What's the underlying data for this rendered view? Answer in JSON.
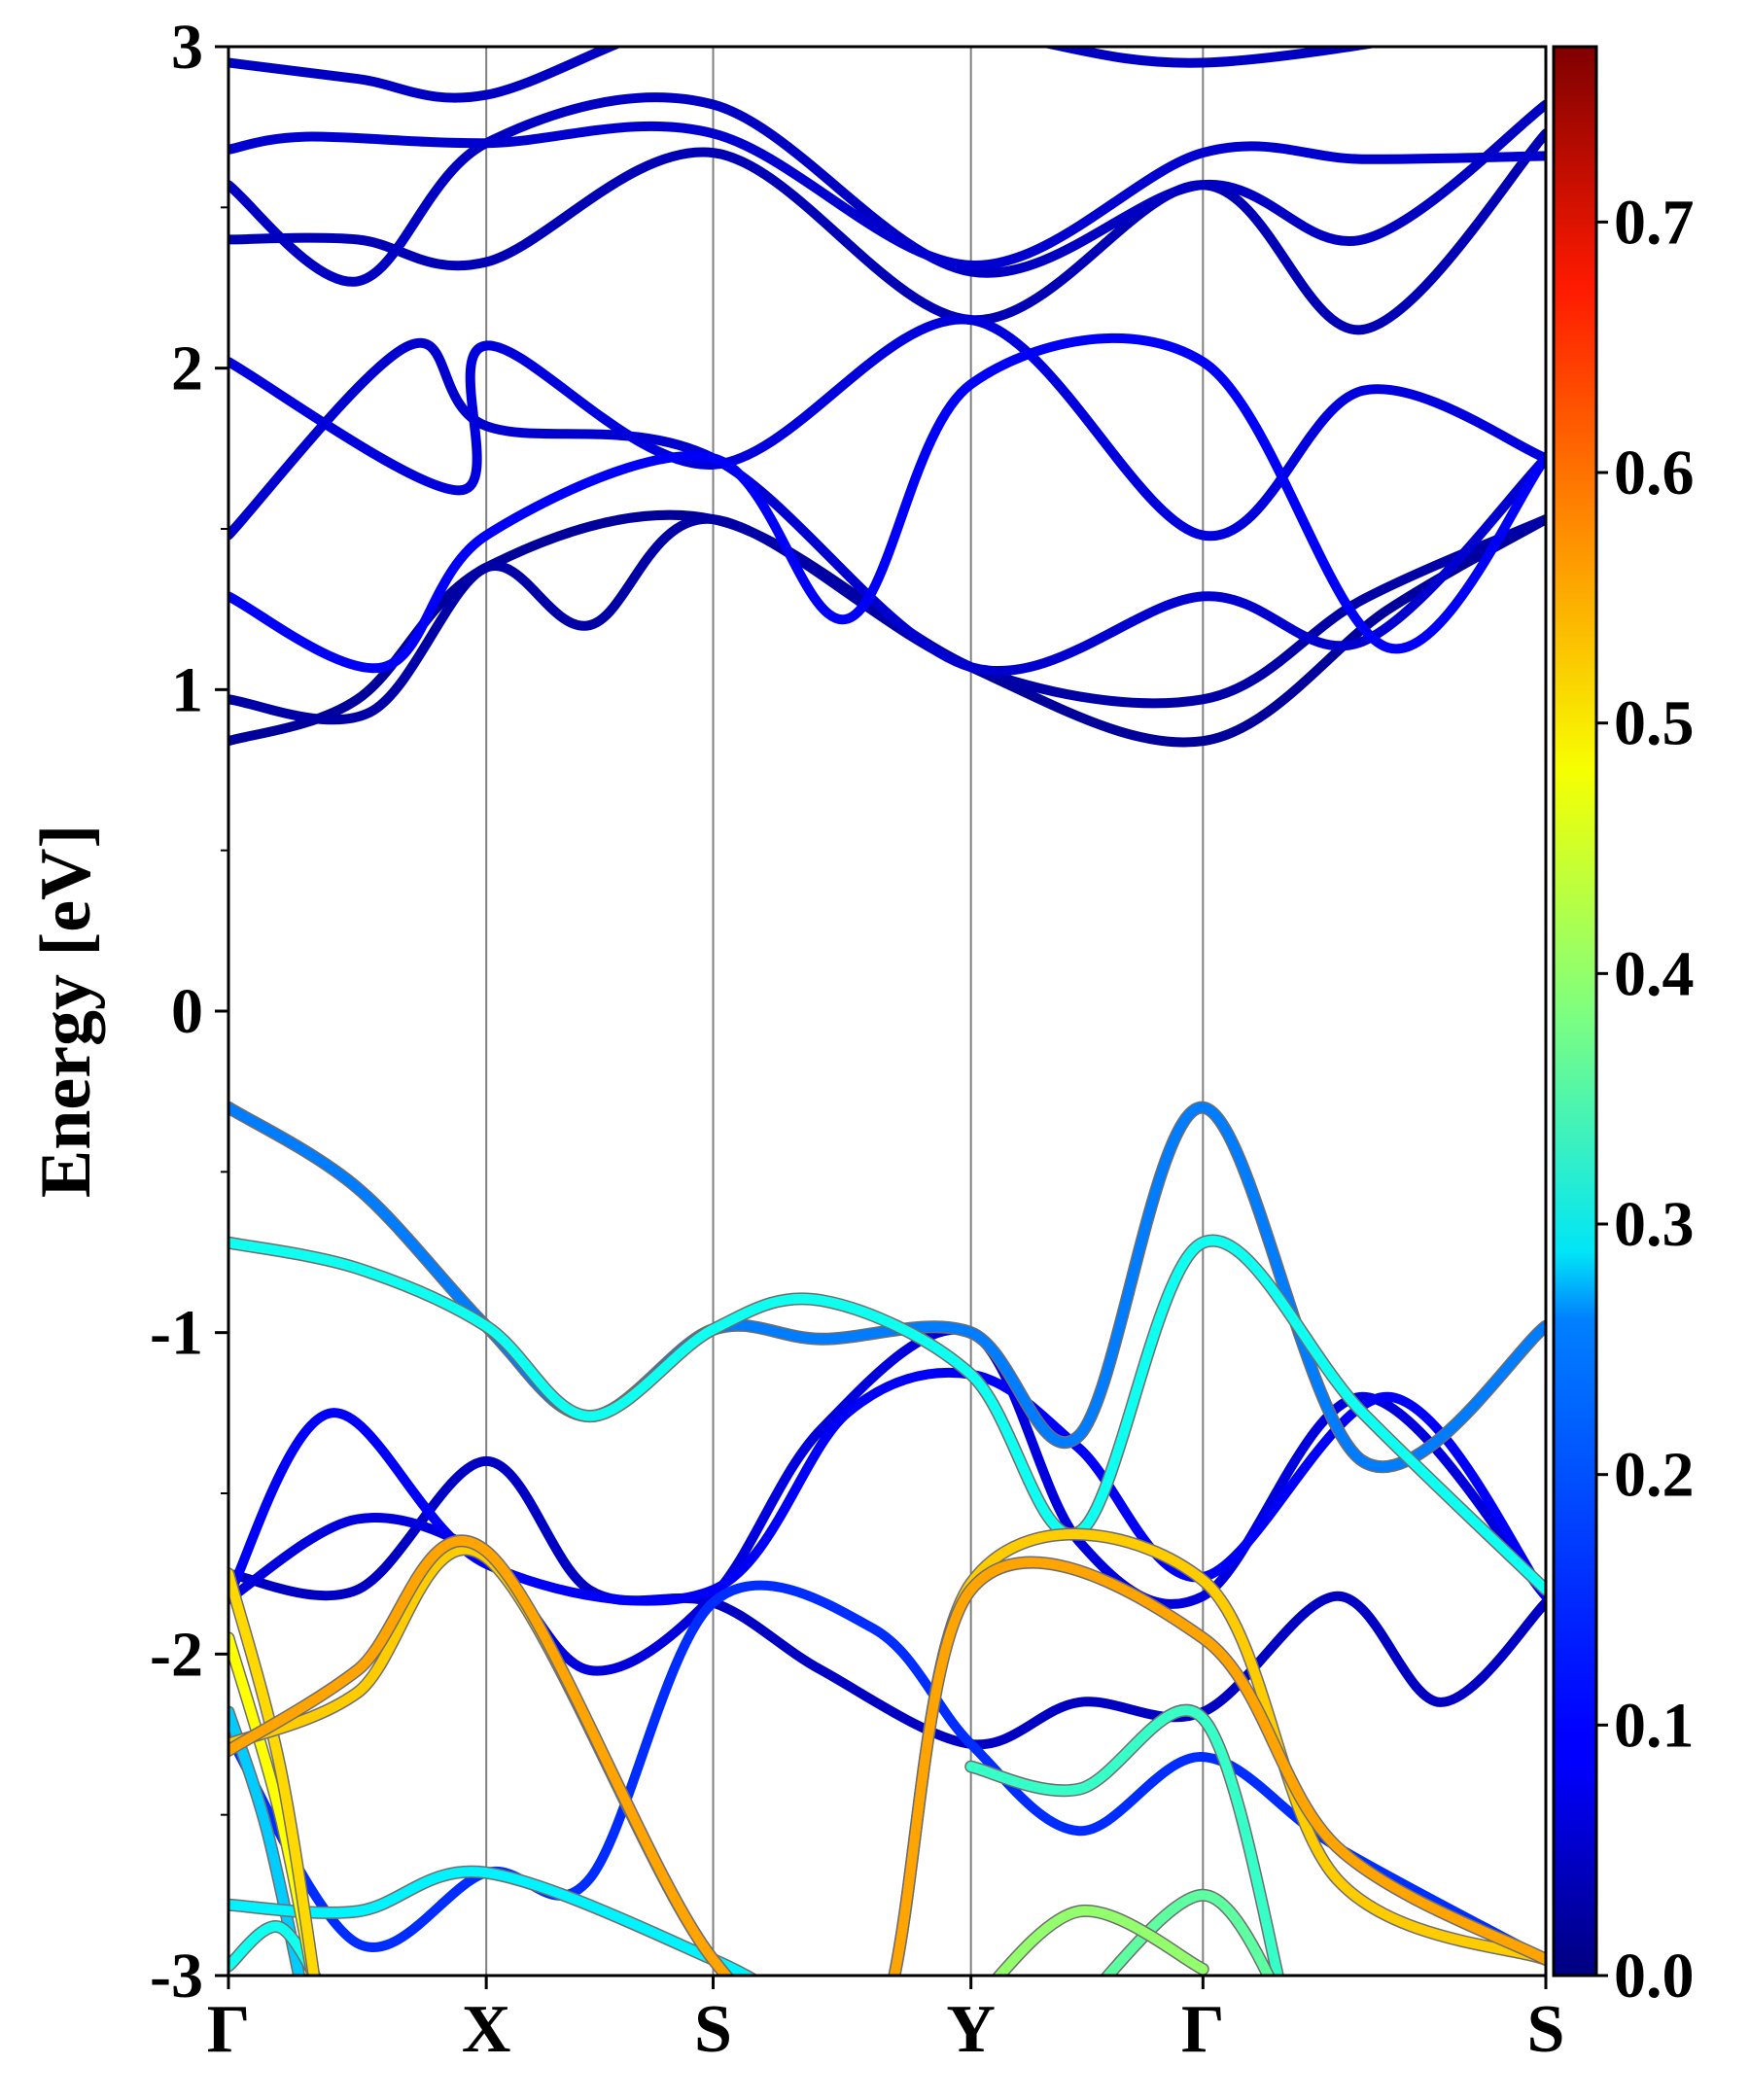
{
  "chart_data": {
    "type": "line",
    "title": "",
    "ylabel": "Energy [eV]",
    "xlabel": "",
    "ylim": [
      -3,
      3
    ],
    "yticks": [
      "-3",
      "-2",
      "-1",
      "0",
      "1",
      "2",
      "3"
    ],
    "kpath": {
      "labels": [
        "Γ",
        "X",
        "S",
        "Y",
        "Γ",
        "S"
      ],
      "positions": [
        0,
        1.0,
        1.88,
        2.88,
        3.78,
        5.11
      ]
    },
    "colorbar": {
      "colormap": "jet",
      "range": [
        0,
        0.77
      ],
      "ticks": [
        "0.0",
        "0.1",
        "0.2",
        "0.3",
        "0.4",
        "0.5",
        "0.6",
        "0.7"
      ]
    },
    "grid": false,
    "series": [
      {
        "k": [
          0,
          0.5,
          1.0,
          1.88,
          2.88,
          3.78,
          4.5,
          5.11
        ],
        "e": [
          0.84,
          0.97,
          1.38,
          1.53,
          1.07,
          0.84,
          1.25,
          1.53
        ],
        "w": 0.02
      },
      {
        "k": [
          0,
          0.55,
          1.0,
          1.4,
          1.88,
          2.88,
          3.78,
          4.4,
          5.11
        ],
        "e": [
          0.97,
          0.93,
          1.38,
          1.2,
          1.53,
          1.07,
          0.97,
          1.28,
          1.53
        ],
        "w": 0.03
      },
      {
        "k": [
          0,
          0.6,
          1.0,
          1.88,
          2.4,
          2.88,
          3.78,
          4.5,
          5.11
        ],
        "e": [
          1.29,
          1.07,
          1.48,
          1.72,
          1.22,
          1.95,
          2.02,
          1.13,
          1.72
        ],
        "w": 0.09
      },
      {
        "k": [
          0,
          0.7,
          1.0,
          1.88,
          2.88,
          3.78,
          4.4,
          5.11
        ],
        "e": [
          1.48,
          2.07,
          1.82,
          1.72,
          1.07,
          1.29,
          1.15,
          1.72
        ],
        "w": 0.06
      },
      {
        "k": [
          0,
          0.9,
          1.0,
          1.88,
          2.88,
          3.78,
          4.4,
          5.11
        ],
        "e": [
          2.02,
          1.62,
          2.07,
          1.7,
          2.15,
          1.48,
          1.93,
          1.72
        ],
        "w": 0.07
      },
      {
        "k": [
          0,
          0.5,
          1.0,
          1.88,
          2.88,
          3.78,
          4.4,
          5.11
        ],
        "e": [
          2.4,
          2.4,
          2.33,
          2.67,
          2.15,
          2.57,
          2.12,
          2.73
        ],
        "w": 0.04
      },
      {
        "k": [
          0,
          0.5,
          1.0,
          1.88,
          2.88,
          3.78,
          4.4,
          5.11
        ],
        "e": [
          2.57,
          2.27,
          2.7,
          2.82,
          2.3,
          2.57,
          2.4,
          2.82
        ],
        "w": 0.05
      },
      {
        "k": [
          0,
          0.3,
          1.0,
          1.88,
          2.88,
          3.78,
          4.4,
          5.11
        ],
        "e": [
          2.68,
          2.72,
          2.7,
          2.73,
          2.32,
          2.67,
          2.65,
          2.66
        ],
        "w": 0.06
      },
      {
        "k": [
          0,
          0.5,
          1.0,
          1.88,
          2.88,
          3.78,
          5.11
        ],
        "e": [
          2.95,
          2.9,
          2.85,
          3.1,
          3.05,
          2.95,
          3.1
        ],
        "w": 0.05
      },
      {
        "k": [
          0,
          0.5,
          1.0,
          1.4,
          1.88,
          2.3,
          2.88,
          3.3,
          3.78,
          4.4,
          5.11
        ],
        "e": [
          -0.3,
          -0.55,
          -0.98,
          -1.26,
          -0.99,
          -1.02,
          -1.0,
          -1.32,
          -0.3,
          -1.4,
          -0.98
        ],
        "w": 0.19
      },
      {
        "k": [
          0,
          0.5,
          1.0,
          1.4,
          1.88,
          2.3,
          2.88,
          3.3,
          3.78,
          4.4,
          5.11
        ],
        "e": [
          -0.72,
          -0.8,
          -0.98,
          -1.26,
          -0.99,
          -0.9,
          -1.13,
          -1.62,
          -0.72,
          -1.25,
          -1.8
        ],
        "w": 0.3
      },
      {
        "k": [
          0,
          0.4,
          1.0,
          1.88,
          2.4,
          2.88,
          3.3,
          3.78,
          4.5,
          5.11
        ],
        "e": [
          -1.82,
          -1.25,
          -1.72,
          -1.8,
          -1.25,
          -1.13,
          -1.36,
          -1.76,
          -1.2,
          -1.82
        ],
        "w": 0.09
      },
      {
        "k": [
          0,
          0.5,
          1.0,
          1.4,
          1.88,
          2.3,
          2.88,
          3.3,
          3.78,
          4.4,
          5.11
        ],
        "e": [
          -1.83,
          -1.58,
          -1.7,
          -2.05,
          -1.82,
          -1.3,
          -1.0,
          -1.65,
          -1.82,
          -1.2,
          -1.82
        ],
        "w": 0.07
      },
      {
        "k": [
          0,
          0.5,
          1.0,
          1.4,
          1.88,
          2.3,
          2.88,
          3.3,
          3.78,
          4.3,
          4.7,
          5.11
        ],
        "e": [
          -1.75,
          -1.8,
          -1.4,
          -1.8,
          -1.84,
          -2.05,
          -2.28,
          -2.15,
          -2.18,
          -1.82,
          -2.15,
          -1.84
        ],
        "w": 0.05
      },
      {
        "k": [
          0,
          0.5,
          1.0,
          1.88,
          2.5,
          2.88,
          3.78,
          4.3,
          5.11
        ],
        "e": [
          -2.28,
          -2.12,
          -1.7,
          -2.95,
          -3.2,
          -1.78,
          -1.77,
          -2.7,
          -2.95
        ],
        "w": 0.52
      },
      {
        "k": [
          0,
          0.5,
          1.0,
          1.88,
          2.5,
          2.88,
          3.78,
          4.3,
          5.11
        ],
        "e": [
          -2.3,
          -2.05,
          -1.68,
          -2.95,
          -3.2,
          -1.8,
          -1.95,
          -2.6,
          -2.95
        ],
        "w": 0.55
      },
      {
        "k": [
          0,
          0.2,
          0.35
        ],
        "e": [
          -1.75,
          -2.35,
          -3.1
        ],
        "w": 0.51
      },
      {
        "k": [
          0,
          0.2,
          0.35
        ],
        "e": [
          -1.95,
          -2.5,
          -3.1
        ],
        "w": 0.48
      },
      {
        "k": [
          0,
          0.15,
          0.3
        ],
        "e": [
          -2.18,
          -2.55,
          -3.1
        ],
        "w": 0.25
      },
      {
        "k": [
          0,
          0.5,
          1.0,
          1.4,
          1.88,
          2.5,
          2.88,
          3.3,
          3.78,
          4.3,
          5.11
        ],
        "e": [
          -2.25,
          -2.9,
          -2.68,
          -2.7,
          -1.84,
          -1.92,
          -2.28,
          -2.55,
          -2.32,
          -2.6,
          -2.95
        ],
        "w": 0.13
      },
      {
        "k": [
          0,
          0.5,
          1.0,
          1.88,
          2.2
        ],
        "e": [
          -2.78,
          -2.8,
          -2.68,
          -2.95,
          -3.1
        ],
        "w": 0.28
      },
      {
        "k": [
          0,
          0.2,
          0.4
        ],
        "e": [
          -2.97,
          -2.85,
          -3.1
        ],
        "w": 0.3
      },
      {
        "k": [
          2.88,
          3.3,
          3.78,
          4.1
        ],
        "e": [
          -2.35,
          -2.42,
          -2.2,
          -3.1
        ],
        "w": 0.33
      },
      {
        "k": [
          2.88,
          3.3,
          3.78
        ],
        "e": [
          -3.1,
          -2.8,
          -2.98
        ],
        "w": 0.4
      },
      {
        "k": [
          3.3,
          3.78,
          4.1
        ],
        "e": [
          -3.1,
          -2.75,
          -3.1
        ],
        "w": 0.36
      }
    ]
  }
}
